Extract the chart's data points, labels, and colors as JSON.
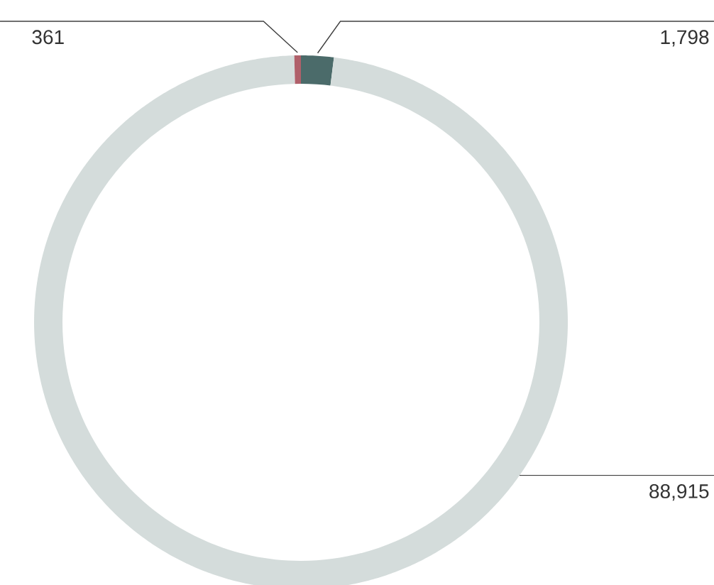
{
  "chart_data": {
    "type": "donut",
    "categories": [
      null,
      null,
      null
    ],
    "values": [
      1798,
      88915,
      361
    ],
    "colors": [
      "#4b6b6a",
      "#d4dcdb",
      "#b0606a"
    ],
    "value_labels": [
      "1,798",
      "88,915",
      "361"
    ]
  }
}
